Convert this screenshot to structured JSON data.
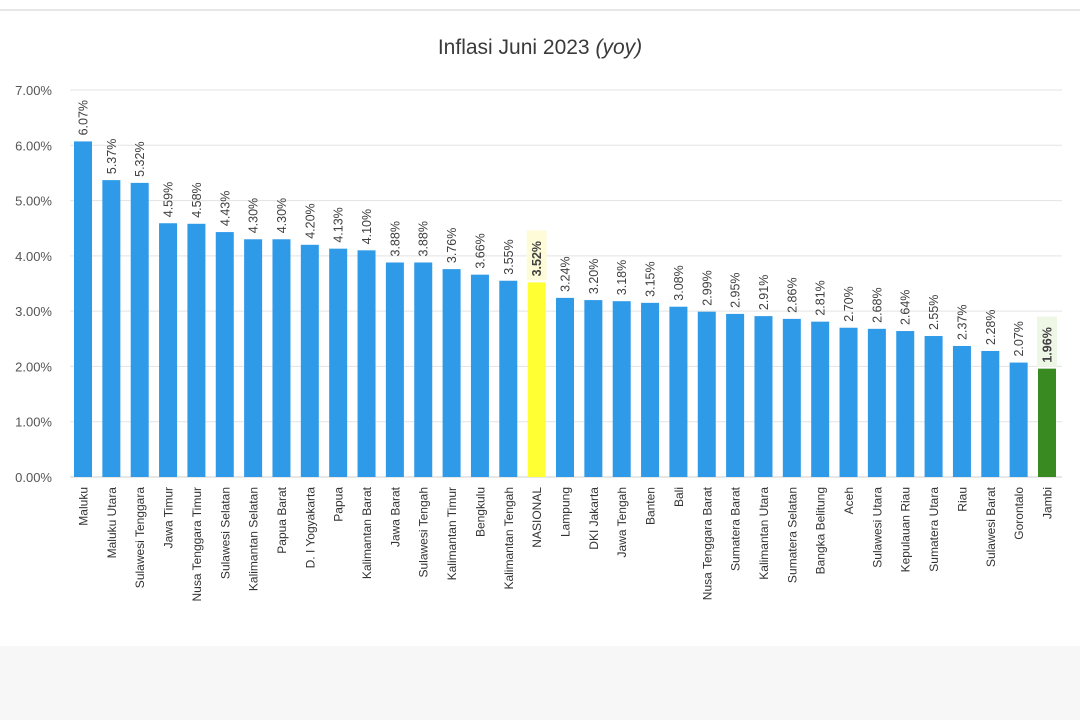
{
  "chart_data": {
    "type": "bar",
    "title": "Inflasi Juni 2023",
    "title_suffix": "(yoy)",
    "xlabel": "",
    "ylabel": "",
    "ylim": [
      0,
      7
    ],
    "yticks": [
      "0.00%",
      "1.00%",
      "2.00%",
      "3.00%",
      "4.00%",
      "5.00%",
      "6.00%",
      "7.00%"
    ],
    "grid": true,
    "categories": [
      "Maluku",
      "Maluku Utara",
      "Sulawesi Tenggara",
      "Jawa Timur",
      "Nusa Tenggara Timur",
      "Sulawesi Selatan",
      "Kalimantan Selatan",
      "Papua Barat",
      "D. I Yogyakarta",
      "Papua",
      "Kalimantan Barat",
      "Jawa Barat",
      "Sulawesi Tengah",
      "Kalimantan Timur",
      "Bengkulu",
      "Kalimantan Tengah",
      "NASIONAL",
      "Lampung",
      "DKI Jakarta",
      "Jawa Tengah",
      "Banten",
      "Bali",
      "Nusa Tenggara Barat",
      "Sumatera Barat",
      "Kalimantan Utara",
      "Sumatera Selatan",
      "Bangka Belitung",
      "Aceh",
      "Sulawesi Utara",
      "Kepulauan Riau",
      "Sumatera Utara",
      "Riau",
      "Sulawesi Barat",
      "Gorontalo",
      "Jambi"
    ],
    "values": [
      6.07,
      5.37,
      5.32,
      4.59,
      4.58,
      4.43,
      4.3,
      4.3,
      4.2,
      4.13,
      4.1,
      3.88,
      3.88,
      3.76,
      3.66,
      3.55,
      3.52,
      3.24,
      3.2,
      3.18,
      3.15,
      3.08,
      2.99,
      2.95,
      2.91,
      2.86,
      2.81,
      2.7,
      2.68,
      2.64,
      2.55,
      2.37,
      2.28,
      2.07,
      1.96
    ],
    "data_labels": [
      "6.07%",
      "5.37%",
      "5.32%",
      "4.59%",
      "4.58%",
      "4.43%",
      "4.30%",
      "4.30%",
      "4.20%",
      "4.13%",
      "4.10%",
      "3.88%",
      "3.88%",
      "3.76%",
      "3.66%",
      "3.55%",
      "3.52%",
      "3.24%",
      "3.20%",
      "3.18%",
      "3.15%",
      "3.08%",
      "2.99%",
      "2.95%",
      "2.91%",
      "2.86%",
      "2.81%",
      "2.70%",
      "2.68%",
      "2.64%",
      "2.55%",
      "2.37%",
      "2.28%",
      "2.07%",
      "1.96%"
    ],
    "colors": {
      "default": "#2f9ae8",
      "highlight_national": "#ffff33",
      "highlight_lowest": "#3a8a22",
      "national_label_bg": "#fdfbd8",
      "lowest_label_bg": "#eef6e6",
      "grid": "#e3e3e3"
    },
    "highlights": {
      "NASIONAL": "highlight_national",
      "Jambi": "highlight_lowest"
    }
  }
}
